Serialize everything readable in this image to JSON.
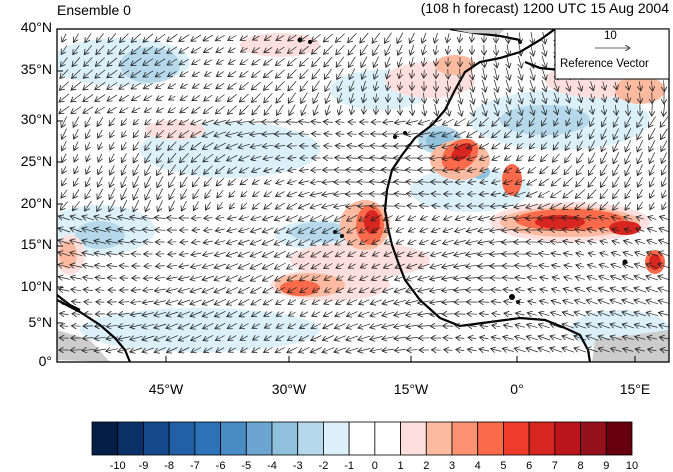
{
  "title_left": "Ensemble 0",
  "title_right": "(108 h forecast) 1200 UTC 15 Aug 2004",
  "lat_ticks": [
    "40°N",
    "35°N",
    "30°N",
    "25°N",
    "20°N",
    "15°N",
    "10°N",
    "5°N",
    "0°"
  ],
  "lon_ticks": [
    "45°W",
    "30°W",
    "15°W",
    "0°",
    "15°E"
  ],
  "reference": {
    "magnitude": "10",
    "label": "Reference Vector"
  },
  "colorbar": {
    "labels": [
      "-10",
      "-9",
      "-8",
      "-7",
      "-6",
      "-5",
      "-4",
      "-3",
      "-2",
      "-1",
      "0",
      "1",
      "2",
      "3",
      "4",
      "5",
      "6",
      "7",
      "8",
      "9",
      "10"
    ],
    "colors": [
      "#051e45",
      "#0a3068",
      "#14498b",
      "#235fa4",
      "#2e72b7",
      "#4a8cc4",
      "#6ba5d0",
      "#8fc0dc",
      "#b5d8ea",
      "#dcf0fa",
      "#ffffff",
      "#ffffff",
      "#fde0dd",
      "#fcbba1",
      "#fc9272",
      "#fb6a4a",
      "#ef3b2c",
      "#d7261f",
      "#bb141a",
      "#94101b",
      "#67000d"
    ]
  },
  "map": {
    "lon_range": [
      -60,
      20
    ],
    "lat_range": [
      0,
      40
    ]
  }
}
